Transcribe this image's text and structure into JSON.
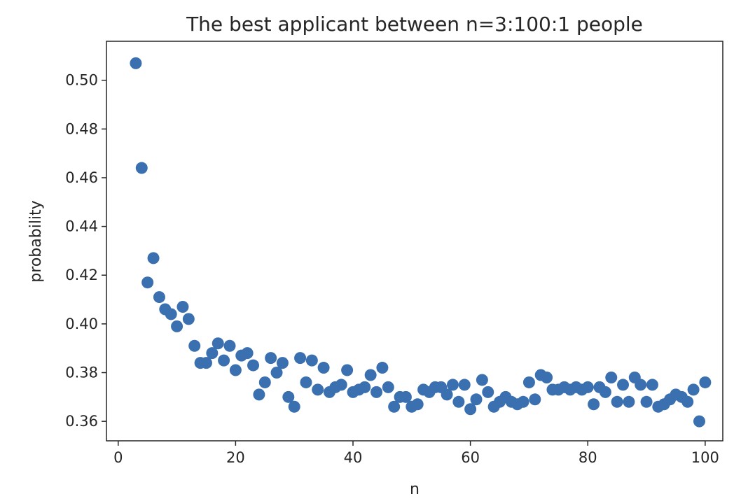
{
  "chart_data": {
    "type": "scatter",
    "title": "The best applicant between n=3:100:1 people",
    "xlabel": "n",
    "ylabel": "probability",
    "xlim": [
      -2,
      103
    ],
    "ylim": [
      0.352,
      0.516
    ],
    "xticks": [
      0,
      20,
      40,
      60,
      80,
      100
    ],
    "yticks": [
      0.36,
      0.38,
      0.4,
      0.42,
      0.44,
      0.46,
      0.48,
      0.5
    ],
    "ytick_labels": [
      "0.36",
      "0.38",
      "0.40",
      "0.42",
      "0.44",
      "0.46",
      "0.48",
      "0.50"
    ],
    "grid": false,
    "marker_color": "#3a6fb0",
    "x": [
      3,
      4,
      5,
      6,
      7,
      8,
      9,
      10,
      11,
      12,
      13,
      14,
      15,
      16,
      17,
      18,
      19,
      20,
      21,
      22,
      23,
      24,
      25,
      26,
      27,
      28,
      29,
      30,
      31,
      32,
      33,
      34,
      35,
      36,
      37,
      38,
      39,
      40,
      41,
      42,
      43,
      44,
      45,
      46,
      47,
      48,
      49,
      50,
      51,
      52,
      53,
      54,
      55,
      56,
      57,
      58,
      59,
      60,
      61,
      62,
      63,
      64,
      65,
      66,
      67,
      68,
      69,
      70,
      71,
      72,
      73,
      74,
      75,
      76,
      77,
      78,
      79,
      80,
      81,
      82,
      83,
      84,
      85,
      86,
      87,
      88,
      89,
      90,
      91,
      92,
      93,
      94,
      95,
      96,
      97,
      98,
      99,
      100
    ],
    "y": [
      0.507,
      0.464,
      0.417,
      0.427,
      0.411,
      0.406,
      0.404,
      0.399,
      0.407,
      0.402,
      0.391,
      0.384,
      0.384,
      0.388,
      0.392,
      0.385,
      0.391,
      0.381,
      0.387,
      0.388,
      0.383,
      0.371,
      0.376,
      0.386,
      0.38,
      0.384,
      0.37,
      0.366,
      0.386,
      0.376,
      0.385,
      0.373,
      0.382,
      0.372,
      0.374,
      0.375,
      0.381,
      0.372,
      0.373,
      0.374,
      0.379,
      0.372,
      0.382,
      0.374,
      0.366,
      0.37,
      0.37,
      0.366,
      0.367,
      0.373,
      0.372,
      0.374,
      0.374,
      0.371,
      0.375,
      0.368,
      0.375,
      0.365,
      0.369,
      0.377,
      0.372,
      0.366,
      0.368,
      0.37,
      0.368,
      0.367,
      0.368,
      0.376,
      0.369,
      0.379,
      0.378,
      0.373,
      0.373,
      0.374,
      0.373,
      0.374,
      0.373,
      0.374,
      0.367,
      0.374,
      0.372,
      0.378,
      0.368,
      0.375,
      0.368,
      0.378,
      0.375,
      0.368,
      0.375,
      0.366,
      0.367,
      0.369,
      0.371,
      0.37,
      0.368,
      0.373,
      0.36,
      0.376
    ]
  }
}
